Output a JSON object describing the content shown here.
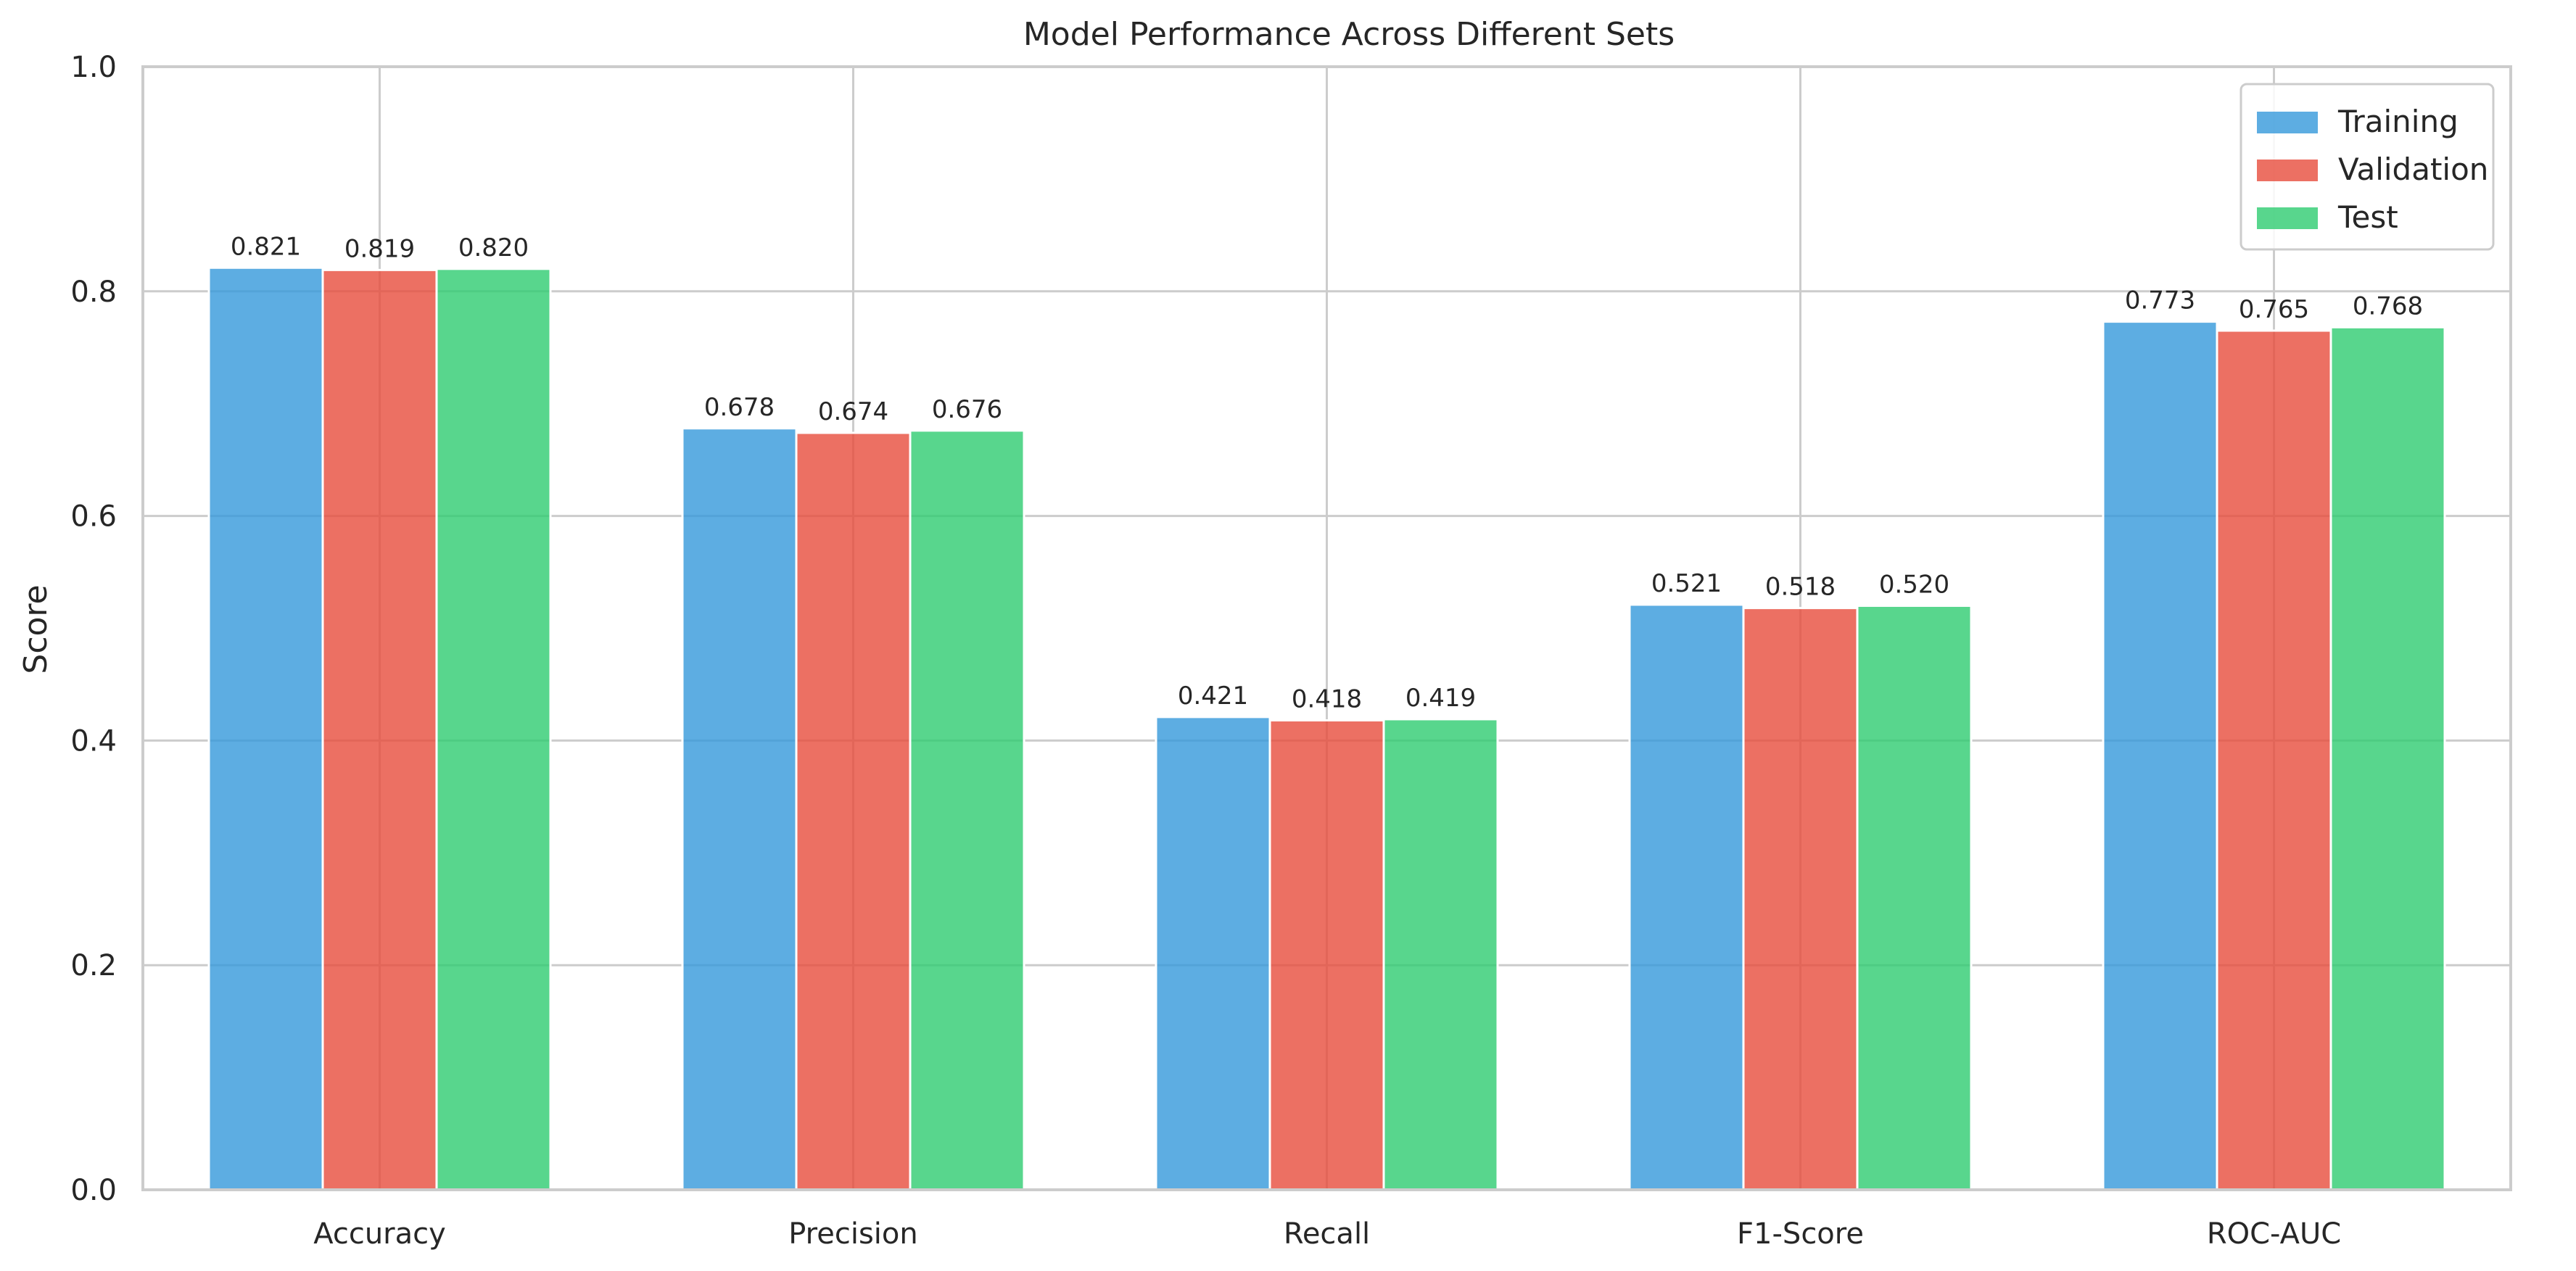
{
  "chart_data": {
    "type": "bar",
    "title": "Model Performance Across Different Sets",
    "xlabel": "",
    "ylabel": "Score",
    "categories": [
      "Accuracy",
      "Precision",
      "Recall",
      "F1-Score",
      "ROC-AUC"
    ],
    "series": [
      {
        "name": "Training",
        "color": "#3498db",
        "values": [
          0.821,
          0.678,
          0.421,
          0.521,
          0.773
        ]
      },
      {
        "name": "Validation",
        "color": "#e74c3c",
        "values": [
          0.819,
          0.674,
          0.418,
          0.518,
          0.765
        ]
      },
      {
        "name": "Test",
        "color": "#2ecc71",
        "values": [
          0.82,
          0.676,
          0.419,
          0.52,
          0.768
        ]
      }
    ],
    "ylim": [
      0,
      1.0
    ],
    "yticks": [
      0.0,
      0.2,
      0.4,
      0.6,
      0.8,
      1.0
    ],
    "ytick_labels": [
      "0.0",
      "0.2",
      "0.4",
      "0.6",
      "0.8",
      "1.0"
    ],
    "value_label_format": "3 decimals",
    "grid": true,
    "legend_position": "top-right"
  }
}
